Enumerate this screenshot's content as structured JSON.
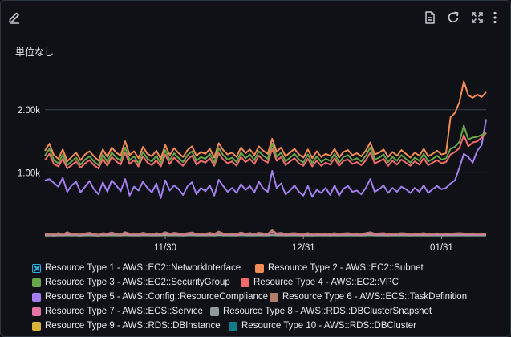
{
  "toolbar": {
    "edit_icon": "pencil-icon",
    "doc_icon": "document-icon",
    "refresh_icon": "refresh-icon",
    "expand_icon": "expand-icon",
    "menu_icon": "more-vertical-icon"
  },
  "chart_data": {
    "type": "line",
    "ylabel": "単位なし",
    "ylim": [
      0,
      2900
    ],
    "yticks": [
      {
        "value": 1000,
        "label": "1.00k"
      },
      {
        "value": 2000,
        "label": "2.00k"
      }
    ],
    "xticks": [
      {
        "index": 27,
        "label": "11/30"
      },
      {
        "index": 58,
        "label": "12/31"
      },
      {
        "index": 89,
        "label": "01/31"
      }
    ],
    "x_points": 100,
    "grid": true,
    "legend_position": "bottom",
    "series": [
      {
        "name": "Resource Type 1 - AWS::EC2::NetworkInterface",
        "color": "#2bb1e0",
        "visible": false,
        "values": []
      },
      {
        "name": "Resource Type 2 - AWS::EC2::Subnet",
        "color": "#f38b54",
        "values": [
          1350,
          1460,
          1280,
          1220,
          1370,
          1180,
          1250,
          1320,
          1200,
          1290,
          1340,
          1260,
          1190,
          1370,
          1250,
          1400,
          1320,
          1270,
          1500,
          1280,
          1340,
          1230,
          1410,
          1300,
          1260,
          1350,
          1220,
          1440,
          1280,
          1390,
          1310,
          1250,
          1360,
          1420,
          1270,
          1330,
          1300,
          1380,
          1240,
          1470,
          1360,
          1290,
          1320,
          1250,
          1400,
          1310,
          1370,
          1280,
          1420,
          1350,
          1300,
          1540,
          1330,
          1400,
          1260,
          1320,
          1380,
          1290,
          1240,
          1370,
          1230,
          1340,
          1250,
          1300,
          1270,
          1380,
          1240,
          1330,
          1360,
          1280,
          1310,
          1260,
          1350,
          1480,
          1290,
          1320,
          1370,
          1250,
          1330,
          1270,
          1360,
          1300,
          1240,
          1320,
          1270,
          1380,
          1260,
          1300,
          1350,
          1290,
          1310,
          1880,
          1950,
          2120,
          2450,
          2230,
          2190,
          2240,
          2200,
          2280
        ]
      },
      {
        "name": "Resource Type 3 - AWS::EC2::SecurityGroup",
        "color": "#67a64a",
        "values": [
          1270,
          1380,
          1200,
          1150,
          1290,
          1120,
          1180,
          1240,
          1130,
          1210,
          1260,
          1180,
          1120,
          1290,
          1170,
          1320,
          1240,
          1190,
          1400,
          1200,
          1260,
          1150,
          1330,
          1220,
          1180,
          1270,
          1150,
          1360,
          1200,
          1310,
          1230,
          1170,
          1280,
          1340,
          1190,
          1250,
          1220,
          1300,
          1160,
          1390,
          1280,
          1210,
          1240,
          1170,
          1320,
          1230,
          1290,
          1200,
          1340,
          1270,
          1220,
          1460,
          1250,
          1320,
          1180,
          1240,
          1300,
          1210,
          1160,
          1290,
          1150,
          1260,
          1170,
          1220,
          1190,
          1300,
          1160,
          1250,
          1280,
          1200,
          1230,
          1180,
          1270,
          1400,
          1210,
          1240,
          1290,
          1170,
          1250,
          1190,
          1280,
          1220,
          1160,
          1240,
          1190,
          1300,
          1180,
          1220,
          1270,
          1210,
          1230,
          1380,
          1410,
          1490,
          1750,
          1530,
          1560,
          1570,
          1600,
          1640
        ]
      },
      {
        "name": "Resource Type 4 - AWS::EC2::VPC",
        "color": "#f26b6b",
        "values": [
          1200,
          1300,
          1140,
          1100,
          1220,
          1070,
          1120,
          1180,
          1080,
          1150,
          1200,
          1120,
          1070,
          1220,
          1110,
          1250,
          1180,
          1130,
          1320,
          1140,
          1200,
          1100,
          1260,
          1160,
          1120,
          1200,
          1100,
          1290,
          1140,
          1240,
          1170,
          1110,
          1210,
          1270,
          1130,
          1190,
          1160,
          1230,
          1110,
          1310,
          1210,
          1150,
          1180,
          1110,
          1250,
          1170,
          1220,
          1140,
          1270,
          1200,
          1160,
          1380,
          1190,
          1250,
          1120,
          1180,
          1230,
          1150,
          1110,
          1220,
          1100,
          1190,
          1110,
          1160,
          1130,
          1230,
          1110,
          1190,
          1210,
          1140,
          1170,
          1120,
          1200,
          1320,
          1150,
          1180,
          1220,
          1110,
          1190,
          1130,
          1210,
          1160,
          1110,
          1180,
          1130,
          1230,
          1120,
          1160,
          1200,
          1150,
          1170,
          1290,
          1330,
          1390,
          1600,
          1420,
          1480,
          1500,
          1560,
          1630
        ]
      },
      {
        "name": "Resource Type 5 - AWS::Config::ResourceCompliance",
        "color": "#a57ff0",
        "values": [
          880,
          900,
          840,
          780,
          920,
          700,
          800,
          860,
          690,
          780,
          870,
          740,
          660,
          850,
          700,
          880,
          800,
          710,
          900,
          640,
          780,
          720,
          860,
          760,
          690,
          830,
          600,
          880,
          720,
          800,
          740,
          650,
          790,
          850,
          660,
          760,
          710,
          800,
          640,
          890,
          790,
          700,
          760,
          680,
          820,
          730,
          790,
          690,
          860,
          750,
          700,
          1030,
          760,
          830,
          660,
          720,
          800,
          700,
          640,
          790,
          620,
          730,
          680,
          760,
          650,
          800,
          640,
          750,
          790,
          700,
          720,
          660,
          760,
          900,
          700,
          740,
          800,
          680,
          760,
          700,
          780,
          740,
          680,
          760,
          700,
          800,
          680,
          740,
          790,
          740,
          760,
          830,
          880,
          1080,
          1300,
          1250,
          1160,
          1350,
          1440,
          1850
        ]
      },
      {
        "name": "Resource Type 6 - AWS::ECS::TaskDefinition",
        "color": "#b57c67",
        "values": [
          40,
          30,
          25,
          45,
          20,
          60,
          30,
          35,
          25,
          40,
          50,
          30,
          20,
          45,
          35,
          55,
          30,
          25,
          60,
          35,
          40,
          30,
          50,
          35,
          25,
          45,
          30,
          60,
          35,
          50,
          40,
          30,
          45,
          55,
          30,
          40,
          35,
          50,
          30,
          70,
          40,
          35,
          40,
          30,
          55,
          35,
          45,
          30,
          50,
          40,
          35,
          90,
          40,
          50,
          30,
          40,
          45,
          35,
          30,
          45,
          30,
          40,
          35,
          40,
          30,
          45,
          30,
          40,
          45,
          35,
          40,
          30,
          45,
          60,
          35,
          40,
          45,
          30,
          40,
          35,
          45,
          40,
          30,
          40,
          35,
          45,
          30,
          35,
          40,
          35,
          40,
          35,
          40,
          45,
          40,
          35,
          40,
          35,
          40,
          35
        ]
      },
      {
        "name": "Resource Type 7 - AWS::ECS::Service",
        "color": "#e376a6",
        "values": [
          20,
          25,
          15,
          30,
          10,
          35,
          20,
          25,
          15,
          30,
          35,
          20,
          15,
          30,
          20,
          40,
          25,
          15,
          45,
          20,
          30,
          15,
          35,
          25,
          15,
          30,
          20,
          45,
          20,
          35,
          25,
          15,
          30,
          40,
          20,
          25,
          20,
          35,
          15,
          50,
          25,
          20,
          30,
          15,
          40,
          25,
          30,
          20,
          35,
          25,
          20,
          65,
          25,
          35,
          15,
          25,
          30,
          20,
          15,
          30,
          15,
          25,
          20,
          25,
          15,
          30,
          15,
          25,
          30,
          20,
          25,
          15,
          30,
          40,
          20,
          25,
          30,
          15,
          25,
          20,
          30,
          25,
          15,
          25,
          20,
          30,
          15,
          20,
          25,
          20,
          25,
          20,
          25,
          30,
          25,
          20,
          25,
          20,
          25,
          20
        ]
      },
      {
        "name": "Resource Type 8 - AWS::RDS::DBClusterSnapshot",
        "color": "#8e9b99",
        "values": [
          10,
          8,
          5,
          12,
          6,
          15,
          8,
          10,
          5,
          12,
          14,
          8,
          5,
          12,
          8,
          18,
          10,
          6,
          20,
          8,
          12,
          6,
          15,
          10,
          6,
          12,
          8,
          20,
          8,
          15,
          10,
          6,
          12,
          18,
          8,
          10,
          8,
          15,
          6,
          22,
          10,
          8,
          12,
          6,
          18,
          10,
          12,
          8,
          15,
          10,
          8,
          20,
          10,
          15,
          6,
          10,
          12,
          8,
          6,
          12,
          6,
          10,
          8,
          10,
          6,
          12,
          6,
          10,
          12,
          8,
          10,
          6,
          12,
          18,
          8,
          10,
          12,
          6,
          10,
          8,
          12,
          10,
          6,
          10,
          8,
          12,
          6,
          8,
          10,
          8,
          10,
          8,
          10,
          12,
          10,
          8,
          10,
          8,
          10,
          8
        ]
      },
      {
        "name": "Resource Type 9 - AWS::RDS::DBInstance",
        "color": "#d9b339",
        "values": [
          5,
          6,
          4,
          8,
          5,
          10,
          6,
          7,
          4,
          8,
          9,
          6,
          4,
          8,
          6,
          10,
          7,
          5,
          12,
          6,
          8,
          5,
          10,
          7,
          5,
          8,
          6,
          12,
          6,
          10,
          7,
          5,
          8,
          11,
          6,
          7,
          6,
          10,
          5,
          14,
          7,
          6,
          8,
          5,
          11,
          7,
          8,
          6,
          10,
          7,
          6,
          14,
          7,
          10,
          5,
          7,
          8,
          6,
          5,
          8,
          5,
          7,
          6,
          7,
          5,
          8,
          5,
          7,
          8,
          6,
          7,
          5,
          8,
          11,
          6,
          7,
          8,
          5,
          7,
          6,
          8,
          7,
          5,
          7,
          6,
          8,
          5,
          6,
          7,
          6,
          7,
          6,
          7,
          8,
          7,
          6,
          7,
          6,
          7,
          6
        ]
      },
      {
        "name": "Resource Type 10 - AWS::RDS::DBCluster",
        "color": "#0f7c88",
        "values": [
          3,
          4,
          2,
          5,
          3,
          6,
          4,
          4,
          2,
          5,
          6,
          4,
          2,
          5,
          4,
          6,
          4,
          3,
          7,
          4,
          5,
          3,
          6,
          4,
          3,
          5,
          4,
          7,
          4,
          6,
          4,
          3,
          5,
          7,
          4,
          4,
          4,
          6,
          3,
          8,
          4,
          4,
          5,
          3,
          7,
          4,
          5,
          4,
          6,
          4,
          4,
          8,
          4,
          6,
          3,
          4,
          5,
          4,
          3,
          5,
          3,
          4,
          4,
          4,
          3,
          5,
          3,
          4,
          5,
          4,
          4,
          3,
          5,
          7,
          4,
          4,
          5,
          3,
          4,
          4,
          5,
          4,
          3,
          4,
          4,
          5,
          3,
          4,
          4,
          4,
          4,
          4,
          4,
          5,
          4,
          4,
          4,
          4,
          4,
          4
        ]
      }
    ]
  }
}
